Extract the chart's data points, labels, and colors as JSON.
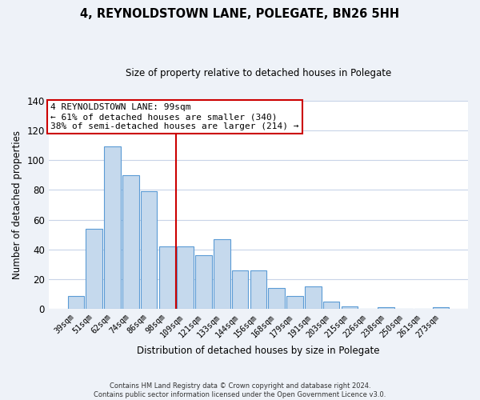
{
  "title": "4, REYNOLDSTOWN LANE, POLEGATE, BN26 5HH",
  "subtitle": "Size of property relative to detached houses in Polegate",
  "xlabel": "Distribution of detached houses by size in Polegate",
  "ylabel": "Number of detached properties",
  "bar_labels": [
    "39sqm",
    "51sqm",
    "62sqm",
    "74sqm",
    "86sqm",
    "98sqm",
    "109sqm",
    "121sqm",
    "133sqm",
    "144sqm",
    "156sqm",
    "168sqm",
    "179sqm",
    "191sqm",
    "203sqm",
    "215sqm",
    "226sqm",
    "238sqm",
    "250sqm",
    "261sqm",
    "273sqm"
  ],
  "bar_values": [
    9,
    54,
    109,
    90,
    79,
    42,
    42,
    36,
    47,
    26,
    26,
    14,
    9,
    15,
    5,
    2,
    0,
    1,
    0,
    0,
    1
  ],
  "bar_color": "#c5d9ed",
  "bar_edge_color": "#5b9bd5",
  "vline_x": 5.5,
  "vline_color": "#cc0000",
  "annotation_title": "4 REYNOLDSTOWN LANE: 99sqm",
  "annotation_line1": "← 61% of detached houses are smaller (340)",
  "annotation_line2": "38% of semi-detached houses are larger (214) →",
  "annotation_box_color": "#ffffff",
  "annotation_box_edge": "#cc0000",
  "ylim": [
    0,
    140
  ],
  "yticks": [
    0,
    20,
    40,
    60,
    80,
    100,
    120,
    140
  ],
  "footer_line1": "Contains HM Land Registry data © Crown copyright and database right 2024.",
  "footer_line2": "Contains public sector information licensed under the Open Government Licence v3.0.",
  "bg_color": "#eef2f8",
  "plot_bg_color": "#ffffff",
  "grid_color": "#c8d4e8"
}
